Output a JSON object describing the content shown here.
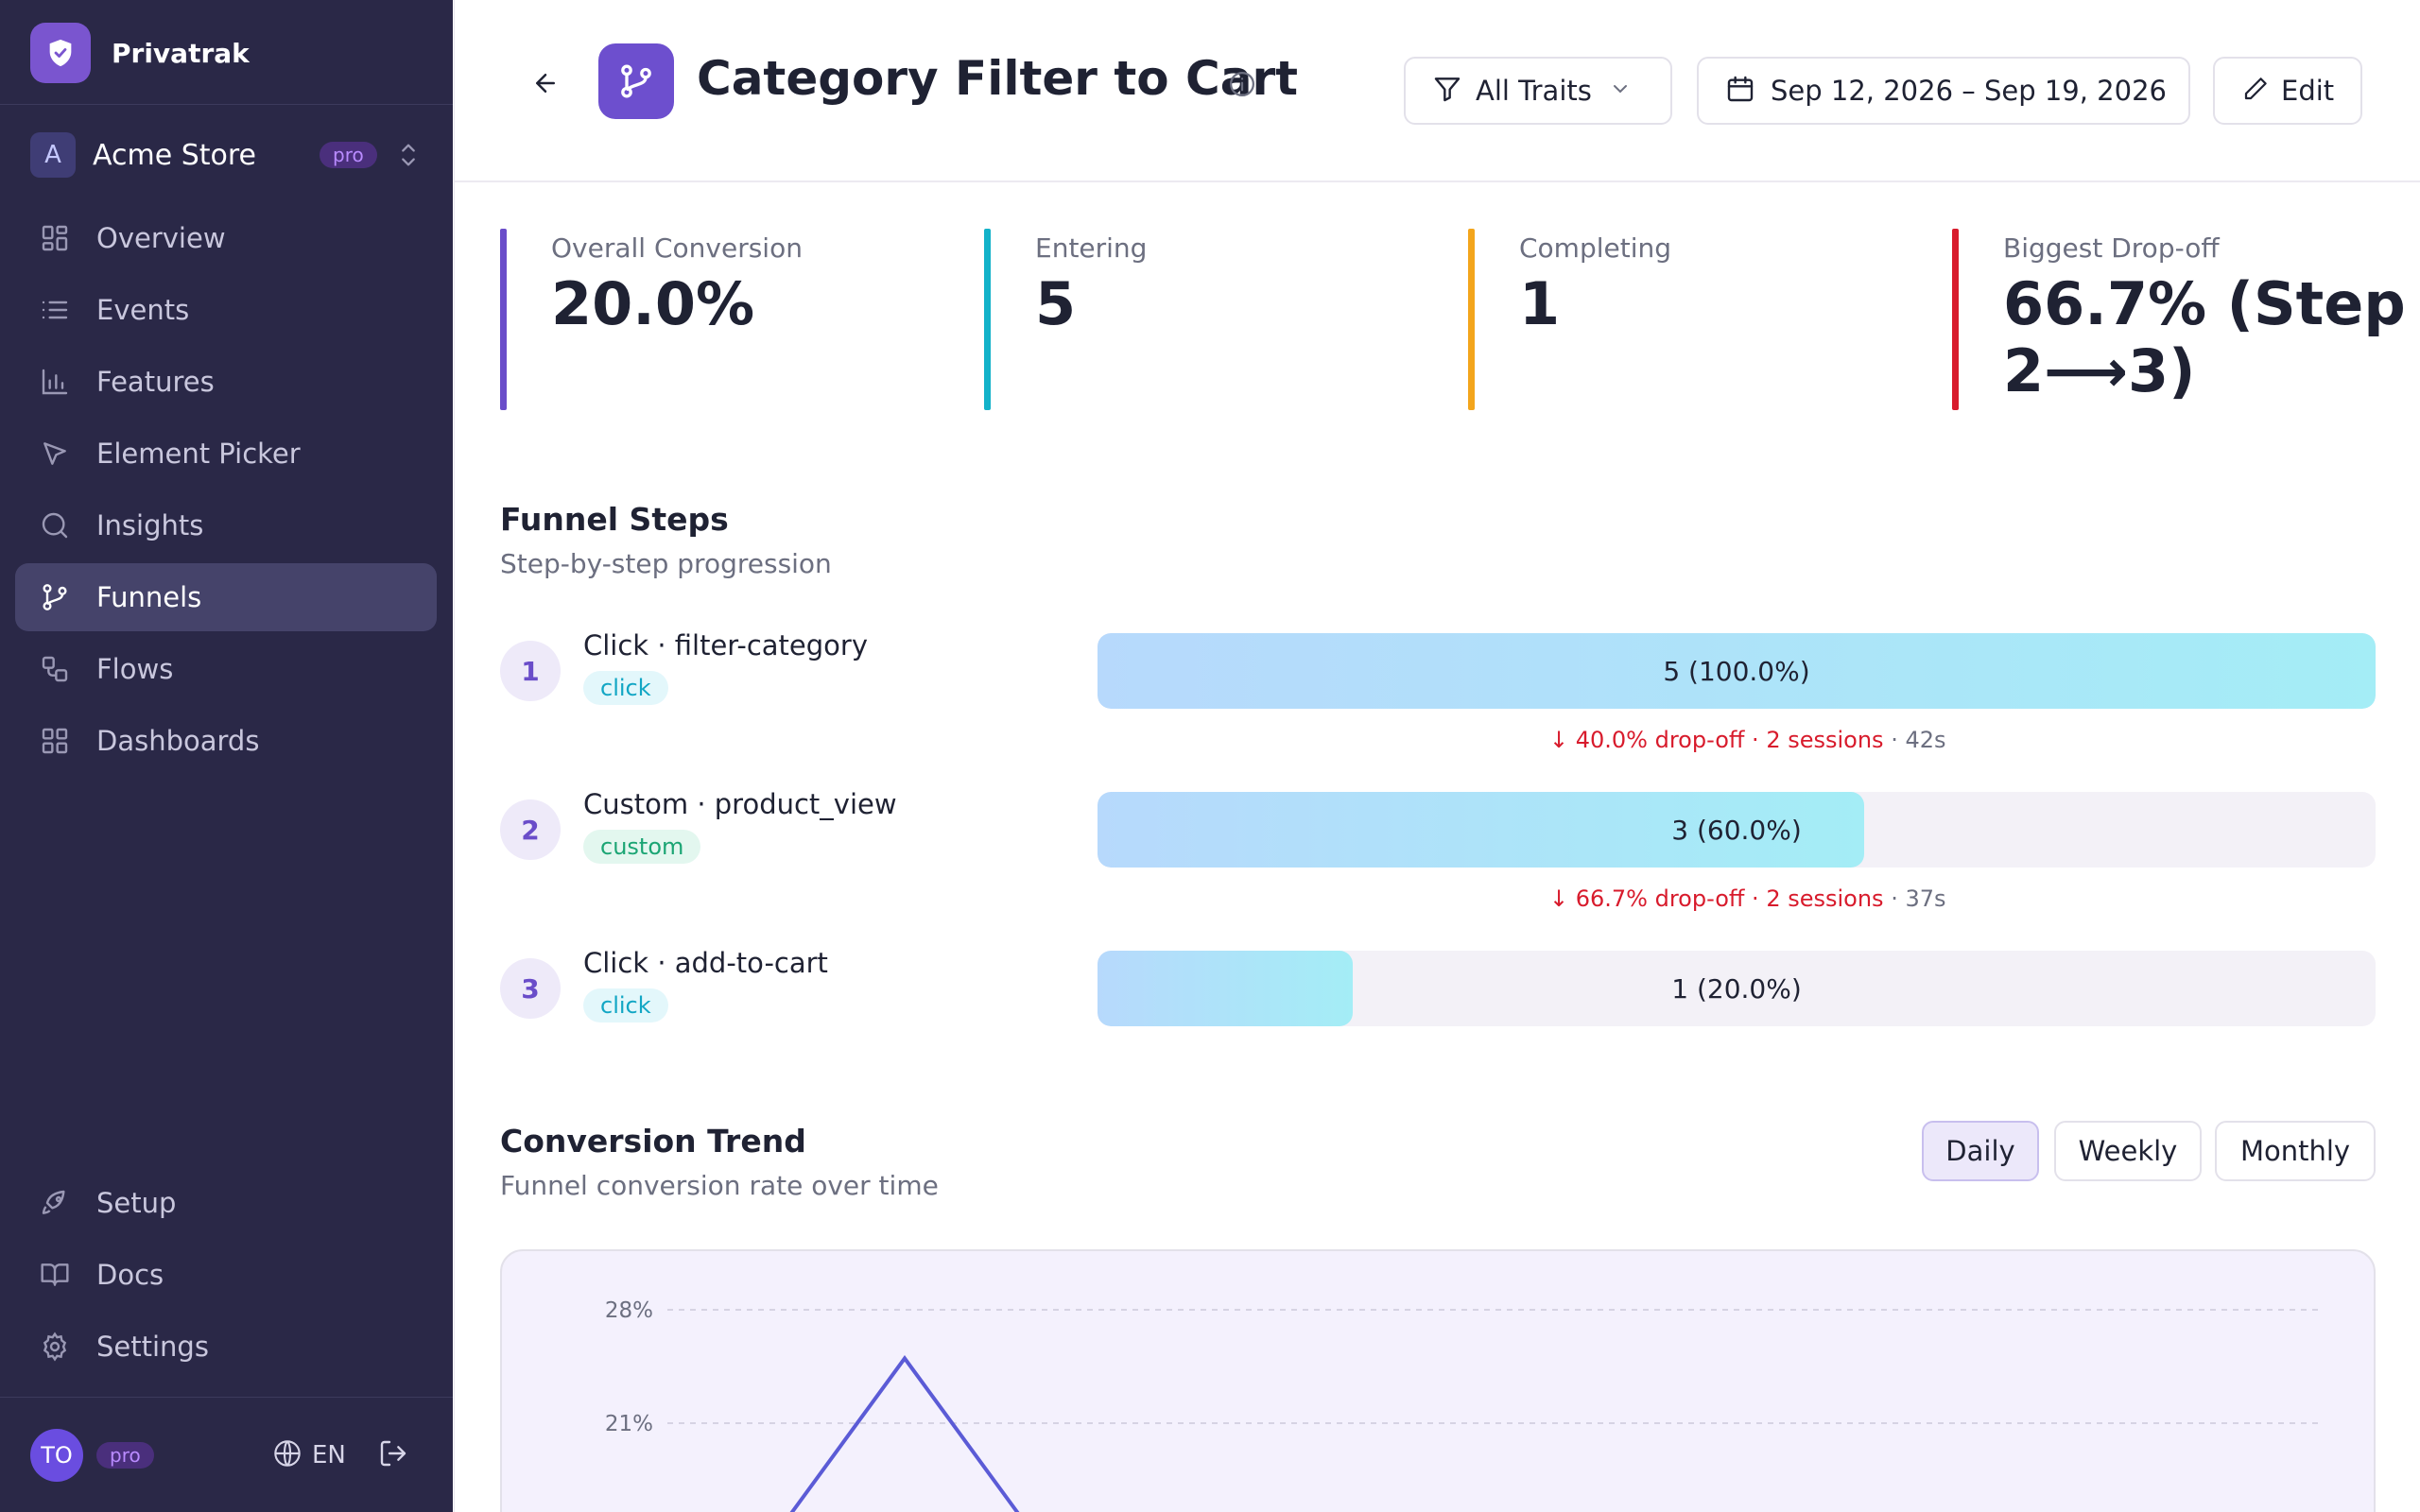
{
  "sidebar": {
    "brand": "Privatrak",
    "workspace": {
      "avatar": "A",
      "name": "Acme Store",
      "badge": "pro"
    },
    "nav": [
      {
        "label": "Overview",
        "icon": "grid-icon"
      },
      {
        "label": "Events",
        "icon": "list-icon"
      },
      {
        "label": "Features",
        "icon": "bar-chart-icon"
      },
      {
        "label": "Element Picker",
        "icon": "cursor-icon"
      },
      {
        "label": "Insights",
        "icon": "search-icon"
      },
      {
        "label": "Funnels",
        "icon": "git-branch-icon",
        "active": true
      },
      {
        "label": "Flows",
        "icon": "flow-icon"
      },
      {
        "label": "Dashboards",
        "icon": "dashboard-icon"
      }
    ],
    "bottom_nav": [
      {
        "label": "Setup",
        "icon": "rocket-icon"
      },
      {
        "label": "Docs",
        "icon": "book-icon"
      },
      {
        "label": "Settings",
        "icon": "gear-icon"
      }
    ],
    "user": {
      "initials": "TO",
      "badge": "pro",
      "language": "EN"
    }
  },
  "header": {
    "title": "Category Filter to Cart",
    "filter_label": "All Traits",
    "date_range": "Sep 12, 2026 – Sep 19, 2026",
    "edit_label": "Edit"
  },
  "kpis": [
    {
      "label": "Overall Conversion",
      "value": "20.0%",
      "color": "#6a4dc9"
    },
    {
      "label": "Entering",
      "value": "5",
      "color": "#13b2c9"
    },
    {
      "label": "Completing",
      "value": "1",
      "color": "#f3a51c"
    },
    {
      "label": "Biggest Drop-off",
      "value_line1": "66.7% (Step",
      "value_line2": "2⟶3)",
      "color": "#d81b2c"
    }
  ],
  "funnel": {
    "title": "Funnel Steps",
    "subtitle": "Step-by-step progression",
    "steps": [
      {
        "num": "1",
        "name": "Click · filter-category",
        "tag": "click",
        "label": "5 (100.0%)",
        "fraction": 1.0,
        "dropoff_text": "↓ 40.0% drop-off · 2 sessions",
        "dropoff_time": " · 42s"
      },
      {
        "num": "2",
        "name": "Custom · product_view",
        "tag": "custom",
        "label": "3 (60.0%)",
        "fraction": 0.6,
        "dropoff_text": "↓ 66.7% drop-off · 2 sessions",
        "dropoff_time": " · 37s"
      },
      {
        "num": "3",
        "name": "Click · add-to-cart",
        "tag": "click",
        "label": "1 (20.0%)",
        "fraction": 0.2
      }
    ]
  },
  "trend": {
    "title": "Conversion Trend",
    "subtitle": "Funnel conversion rate over time",
    "periods": [
      "Daily",
      "Weekly",
      "Monthly"
    ],
    "active_period": "Daily"
  },
  "chart_data": {
    "type": "line",
    "yticks": [
      "28%",
      "21%"
    ],
    "ytick_values": [
      28,
      21
    ],
    "series": [
      {
        "values": [
          14,
          25,
          14
        ]
      }
    ]
  },
  "colors": {
    "sidebar_bg": "#2a2847",
    "accent": "#6d4fce",
    "line": "#5b5bd6"
  }
}
